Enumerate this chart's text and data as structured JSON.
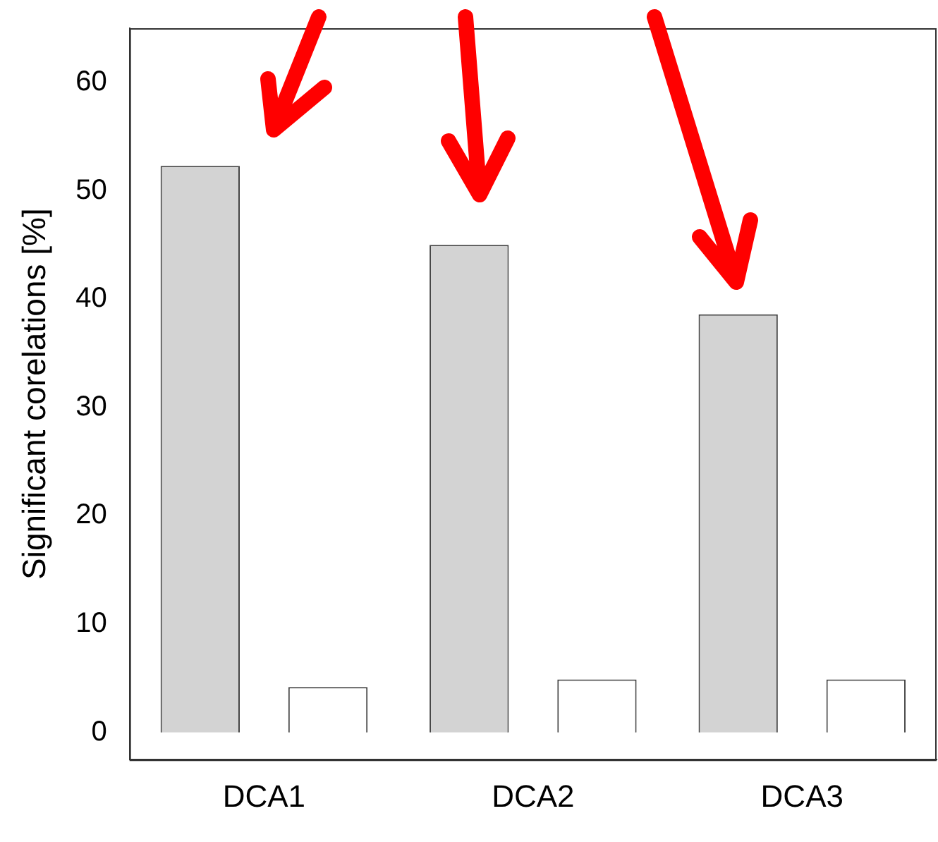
{
  "chart_data": {
    "type": "bar",
    "ylabel": "Significant corelations [%]",
    "categories": [
      "DCA1",
      "DCA2",
      "DCA3"
    ],
    "series": [
      {
        "color": "#d3d3d3",
        "values": [
          52.3,
          45.0,
          38.6
        ]
      },
      {
        "color": "#ffffff",
        "values": [
          4.2,
          4.9,
          4.9
        ]
      }
    ],
    "ylim": [
      -2.5,
      65
    ],
    "yticks": [
      0,
      10,
      20,
      30,
      40,
      50,
      60
    ],
    "grid": false,
    "legend": false
  }
}
